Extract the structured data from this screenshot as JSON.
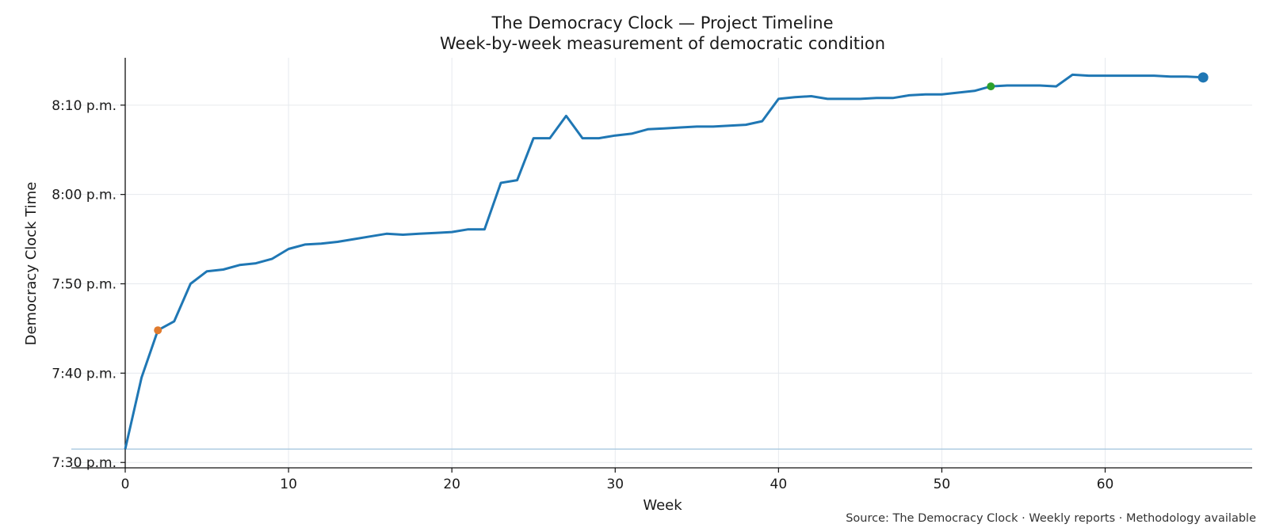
{
  "chart_data": {
    "type": "line",
    "title": "The Democracy Clock — Project Timeline",
    "subtitle": "Week-by-week measurement of democratic condition",
    "xlabel": "Week",
    "ylabel": "Democracy Clock Time",
    "source": "Source: The Democracy Clock · Weekly reports · Methodology available",
    "xlim": [
      -3.3,
      69
    ],
    "ylim": [
      29.4,
      75.3
    ],
    "y_unit": "minutes after 7:00 p.m.",
    "x_ticks": [
      {
        "value": 0,
        "label": "0"
      },
      {
        "value": 10,
        "label": "10"
      },
      {
        "value": 20,
        "label": "20"
      },
      {
        "value": 30,
        "label": "30"
      },
      {
        "value": 40,
        "label": "40"
      },
      {
        "value": 50,
        "label": "50"
      },
      {
        "value": 60,
        "label": "60"
      }
    ],
    "y_ticks": [
      {
        "value": 30,
        "label": "7:30 p.m."
      },
      {
        "value": 40,
        "label": "7:40 p.m."
      },
      {
        "value": 50,
        "label": "7:50 p.m."
      },
      {
        "value": 60,
        "label": "8:00 p.m."
      },
      {
        "value": 70,
        "label": "8:10 p.m."
      }
    ],
    "grid": true,
    "reference_line": {
      "y": 31.5,
      "color": "#a9c9e0"
    },
    "series": [
      {
        "color": "#1f77b4",
        "points": [
          [
            0,
            31.5
          ],
          [
            1,
            39.5
          ],
          [
            2,
            44.8
          ],
          [
            3,
            45.8
          ],
          [
            4,
            50
          ],
          [
            5,
            51.4
          ],
          [
            6,
            51.6
          ],
          [
            7,
            52.1
          ],
          [
            8,
            52.3
          ],
          [
            9,
            52.8
          ],
          [
            10,
            53.9
          ],
          [
            11,
            54.4
          ],
          [
            12,
            54.5
          ],
          [
            13,
            54.7
          ],
          [
            14,
            55
          ],
          [
            15,
            55.3
          ],
          [
            16,
            55.6
          ],
          [
            17,
            55.5
          ],
          [
            18,
            55.6
          ],
          [
            19,
            55.7
          ],
          [
            20,
            55.8
          ],
          [
            21,
            56.1
          ],
          [
            22,
            56.1
          ],
          [
            23,
            61.3
          ],
          [
            24,
            61.6
          ],
          [
            25,
            66.3
          ],
          [
            26,
            66.3
          ],
          [
            27,
            68.8
          ],
          [
            28,
            66.3
          ],
          [
            29,
            66.3
          ],
          [
            30,
            66.6
          ],
          [
            31,
            66.8
          ],
          [
            32,
            67.3
          ],
          [
            33,
            67.4
          ],
          [
            34,
            67.5
          ],
          [
            35,
            67.6
          ],
          [
            36,
            67.6
          ],
          [
            37,
            67.7
          ],
          [
            38,
            67.8
          ],
          [
            39,
            68.2
          ],
          [
            40,
            70.7
          ],
          [
            41,
            70.9
          ],
          [
            42,
            71
          ],
          [
            43,
            70.7
          ],
          [
            44,
            70.7
          ],
          [
            45,
            70.7
          ],
          [
            46,
            70.8
          ],
          [
            47,
            70.8
          ],
          [
            48,
            71.1
          ],
          [
            49,
            71.2
          ],
          [
            50,
            71.2
          ],
          [
            51,
            71.4
          ],
          [
            52,
            71.6
          ],
          [
            53,
            72.1
          ],
          [
            54,
            72.2
          ],
          [
            55,
            72.2
          ],
          [
            56,
            72.2
          ],
          [
            57,
            72.1
          ],
          [
            58,
            73.4
          ],
          [
            59,
            73.3
          ],
          [
            60,
            73.3
          ],
          [
            61,
            73.3
          ],
          [
            62,
            73.3
          ],
          [
            63,
            73.3
          ],
          [
            64,
            73.2
          ],
          [
            65,
            73.2
          ],
          [
            66,
            73.1
          ]
        ]
      }
    ],
    "markers": [
      {
        "x": 2,
        "y": 44.8,
        "color": "#e07b2e",
        "size": 5
      },
      {
        "x": 53,
        "y": 72.1,
        "color": "#2ca02c",
        "size": 5
      },
      {
        "x": 66,
        "y": 73.1,
        "color": "#1f77b4",
        "size": 6.5
      }
    ]
  }
}
